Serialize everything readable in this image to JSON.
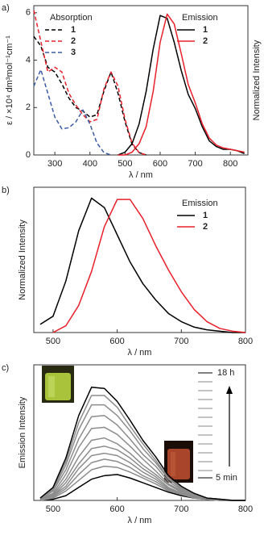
{
  "chart_data": [
    {
      "type": "line",
      "panel_label": "a)",
      "xlabel": "λ / nm",
      "ylabel": "ε / ×10⁴ dm³mol⁻¹cm⁻¹",
      "y2label": "Normalized Intensity",
      "x": [
        240,
        260,
        280,
        300,
        320,
        340,
        360,
        380,
        400,
        420,
        440,
        460,
        480,
        500,
        520,
        540,
        560,
        580,
        600,
        620,
        640,
        660,
        680,
        700,
        720,
        740,
        760,
        780,
        800,
        820,
        840
      ],
      "xlim": [
        240,
        850
      ],
      "xticks": [
        300,
        400,
        500,
        600,
        700,
        800
      ],
      "ylim": [
        0,
        6.3
      ],
      "yticks": [
        0,
        2,
        4,
        6
      ],
      "y2lim": [
        0,
        1.06
      ],
      "series": [
        {
          "name": "1",
          "group": "Absorption",
          "color": "#000000",
          "linestyle": "dashed",
          "values": [
            5.0,
            4.6,
            3.7,
            3.5,
            3.0,
            2.4,
            2.0,
            1.85,
            1.6,
            1.7,
            2.7,
            3.5,
            2.6,
            1.4,
            0.45,
            0.1,
            0.0,
            null,
            null,
            null,
            null,
            null,
            null,
            null,
            null,
            null,
            null,
            null,
            null,
            null,
            null
          ]
        },
        {
          "name": "2",
          "group": "Absorption",
          "color": "#e8202a",
          "linestyle": "dashed",
          "values": [
            6.1,
            4.8,
            3.5,
            3.7,
            3.5,
            2.6,
            2.1,
            1.7,
            1.4,
            1.5,
            2.8,
            3.5,
            2.9,
            1.5,
            0.5,
            0.1,
            0.0,
            null,
            null,
            null,
            null,
            null,
            null,
            null,
            null,
            null,
            null,
            null,
            null,
            null,
            null
          ]
        },
        {
          "name": "3",
          "group": "Absorption",
          "color": "#3b5ba5",
          "linestyle": "dashed",
          "values": [
            2.9,
            3.6,
            2.6,
            1.6,
            1.1,
            1.15,
            1.4,
            1.9,
            1.3,
            0.5,
            0.1,
            0.0,
            null,
            null,
            null,
            null,
            null,
            null,
            null,
            null,
            null,
            null,
            null,
            null,
            null,
            null,
            null,
            null,
            null,
            null,
            null
          ]
        },
        {
          "name": "1",
          "group": "Emission",
          "color": "#000000",
          "linestyle": "solid",
          "axis": "y2",
          "values": [
            null,
            null,
            null,
            null,
            null,
            null,
            null,
            null,
            null,
            null,
            null,
            null,
            0,
            0.02,
            0.08,
            0.22,
            0.45,
            0.75,
            0.99,
            0.97,
            0.8,
            0.6,
            0.43,
            0.33,
            0.2,
            0.1,
            0.06,
            0.04,
            0.04,
            0.03,
            0.01
          ]
        },
        {
          "name": "2",
          "group": "Emission",
          "color": "#e8202a",
          "linestyle": "solid",
          "axis": "y2",
          "values": [
            null,
            null,
            null,
            null,
            null,
            null,
            null,
            null,
            null,
            null,
            null,
            null,
            0,
            0,
            0.02,
            0.08,
            0.2,
            0.45,
            0.8,
            1.0,
            0.93,
            0.72,
            0.5,
            0.37,
            0.22,
            0.12,
            0.07,
            0.05,
            0.04,
            0.03,
            0.02
          ]
        }
      ]
    },
    {
      "type": "line",
      "panel_label": "b)",
      "xlabel": "λ / nm",
      "ylabel": "Normalized Intensity",
      "x": [
        480,
        500,
        520,
        540,
        560,
        580,
        600,
        620,
        640,
        660,
        680,
        700,
        720,
        740,
        760,
        780,
        800
      ],
      "xlim": [
        470,
        800
      ],
      "xticks": [
        500,
        600,
        700,
        800
      ],
      "ylim": [
        0,
        1.07
      ],
      "series": [
        {
          "name": "1",
          "group": "Emission",
          "color": "#000000",
          "linestyle": "solid",
          "values": [
            0.06,
            0.12,
            0.38,
            0.75,
            0.99,
            0.92,
            0.72,
            0.52,
            0.36,
            0.24,
            0.14,
            0.08,
            0.04,
            0.02,
            0.01,
            0.0,
            0.0
          ]
        },
        {
          "name": "2",
          "group": "Emission",
          "color": "#e8202a",
          "linestyle": "solid",
          "values": [
            null,
            0.0,
            0.05,
            0.2,
            0.45,
            0.78,
            0.98,
            0.98,
            0.84,
            0.64,
            0.46,
            0.3,
            0.17,
            0.08,
            0.03,
            0.01,
            0.0
          ]
        }
      ]
    },
    {
      "type": "line",
      "panel_label": "c)",
      "xlabel": "λ / nm",
      "ylabel": "Emission Intensity",
      "label_start": "5 min",
      "label_end": "18 h",
      "x": [
        480,
        500,
        520,
        540,
        560,
        580,
        600,
        620,
        640,
        660,
        680,
        700,
        720,
        740,
        760,
        780,
        800
      ],
      "xlim": [
        470,
        800
      ],
      "xticks": [
        500,
        600,
        700,
        800
      ],
      "ylim": [
        0,
        1.15
      ],
      "series": [
        {
          "color": "#000000",
          "linestyle": "solid",
          "values": [
            0.0,
            0.01,
            0.04,
            0.11,
            0.18,
            0.21,
            0.22,
            0.19,
            0.15,
            0.11,
            0.07,
            0.04,
            0.02,
            0.01,
            0.0,
            0,
            0
          ]
        },
        {
          "color": "#8c8c8c",
          "linestyle": "solid",
          "values": [
            0.0,
            0.02,
            0.08,
            0.17,
            0.26,
            0.29,
            0.28,
            0.24,
            0.19,
            0.14,
            0.08,
            0.05,
            0.02,
            0.01,
            0.0,
            0,
            0
          ]
        },
        {
          "color": "#8c8c8c",
          "linestyle": "solid",
          "values": [
            0.01,
            0.03,
            0.1,
            0.22,
            0.32,
            0.35,
            0.33,
            0.28,
            0.21,
            0.16,
            0.09,
            0.05,
            0.03,
            0.01,
            0.0,
            0,
            0
          ]
        },
        {
          "color": "#8c8c8c",
          "linestyle": "solid",
          "values": [
            0.01,
            0.04,
            0.12,
            0.27,
            0.38,
            0.4,
            0.38,
            0.32,
            0.24,
            0.18,
            0.1,
            0.06,
            0.03,
            0.01,
            0.0,
            0,
            0
          ]
        },
        {
          "color": "#8c8c8c",
          "linestyle": "solid",
          "values": [
            0.01,
            0.04,
            0.15,
            0.31,
            0.44,
            0.46,
            0.43,
            0.36,
            0.27,
            0.2,
            0.11,
            0.06,
            0.03,
            0.01,
            0.0,
            0,
            0
          ]
        },
        {
          "color": "#8c8c8c",
          "linestyle": "solid",
          "values": [
            0.01,
            0.05,
            0.18,
            0.37,
            0.51,
            0.53,
            0.48,
            0.4,
            0.3,
            0.22,
            0.13,
            0.07,
            0.04,
            0.01,
            0.01,
            0,
            0
          ]
        },
        {
          "color": "#8c8c8c",
          "linestyle": "solid",
          "values": [
            0.01,
            0.06,
            0.22,
            0.45,
            0.61,
            0.62,
            0.56,
            0.46,
            0.35,
            0.25,
            0.14,
            0.08,
            0.04,
            0.02,
            0.01,
            0,
            0
          ]
        },
        {
          "color": "#8c8c8c",
          "linestyle": "solid",
          "values": [
            0.01,
            0.08,
            0.26,
            0.52,
            0.71,
            0.72,
            0.64,
            0.52,
            0.39,
            0.29,
            0.16,
            0.09,
            0.05,
            0.02,
            0.01,
            0,
            0
          ]
        },
        {
          "color": "#8c8c8c",
          "linestyle": "solid",
          "values": [
            0.02,
            0.09,
            0.3,
            0.6,
            0.81,
            0.81,
            0.72,
            0.59,
            0.44,
            0.32,
            0.18,
            0.1,
            0.05,
            0.02,
            0.01,
            0,
            0
          ]
        },
        {
          "color": "#8c8c8c",
          "linestyle": "solid",
          "values": [
            0.02,
            0.1,
            0.33,
            0.66,
            0.89,
            0.89,
            0.79,
            0.63,
            0.48,
            0.34,
            0.19,
            0.11,
            0.05,
            0.02,
            0.01,
            0,
            0
          ]
        },
        {
          "color": "#000000",
          "linestyle": "solid",
          "values": [
            0.02,
            0.11,
            0.36,
            0.72,
            0.96,
            0.95,
            0.84,
            0.68,
            0.51,
            0.37,
            0.21,
            0.12,
            0.06,
            0.02,
            0.01,
            0,
            0
          ]
        }
      ]
    }
  ]
}
